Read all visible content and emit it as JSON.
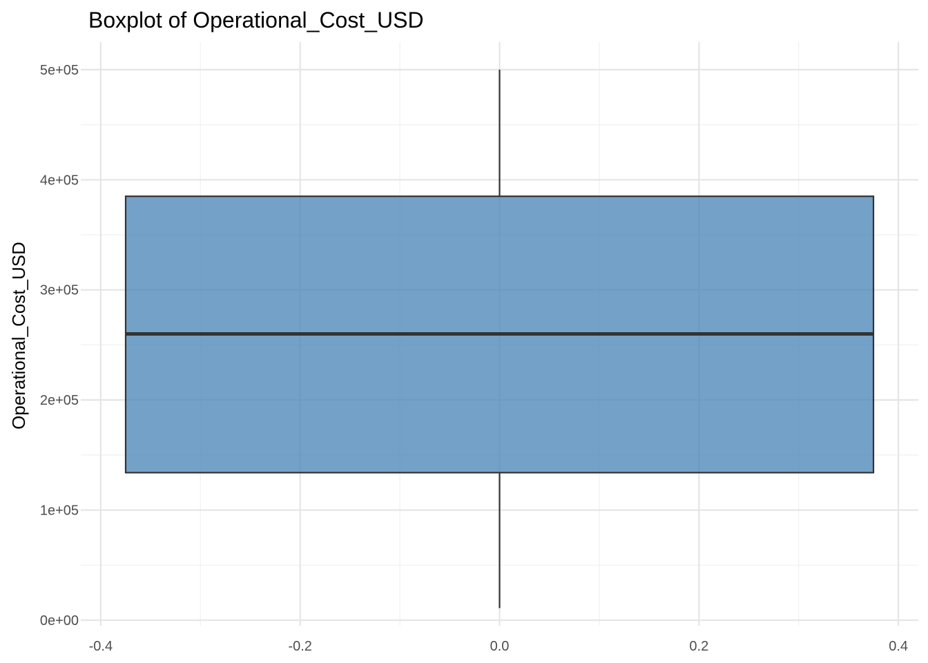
{
  "chart_data": {
    "type": "boxplot",
    "title": "Boxplot of Operational_Cost_USD",
    "xlabel": "",
    "ylabel": "Operational_Cost_USD",
    "xlim": [
      -0.42,
      0.42
    ],
    "ylim": [
      -5000,
      525000
    ],
    "x_ticks": [
      -0.4,
      -0.2,
      0.0,
      0.2,
      0.4
    ],
    "x_tick_labels": [
      "-0.4",
      "-0.2",
      "0.0",
      "0.2",
      "0.4"
    ],
    "y_ticks": [
      0,
      100000,
      200000,
      300000,
      400000,
      500000
    ],
    "y_tick_labels": [
      "0e+00",
      "1e+05",
      "2e+05",
      "3e+05",
      "4e+05",
      "5e+05"
    ],
    "grid": true,
    "box": {
      "x_center": 0.0,
      "x_min": -0.375,
      "x_max": 0.375,
      "min": 11000,
      "q1": 134000,
      "median": 260000,
      "q3": 385000,
      "max": 500000
    },
    "colors": {
      "box_fill": "#4682b4",
      "box_stroke": "#333333",
      "grid_major": "#e5e5e5",
      "grid_minor": "#f0f0f0"
    }
  }
}
